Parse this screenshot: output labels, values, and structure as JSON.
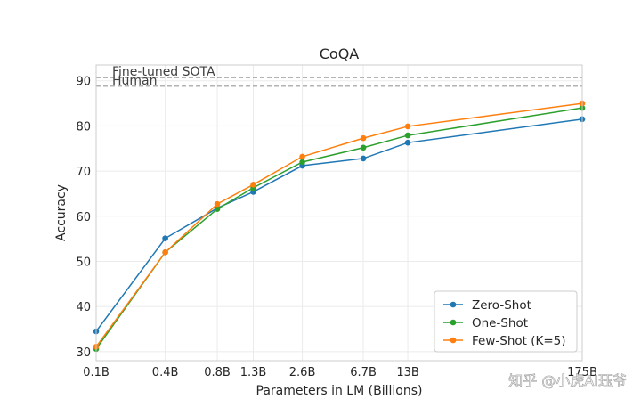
{
  "chart_data": {
    "type": "line",
    "title": "CoQA",
    "xlabel": "Parameters in LM (Billions)",
    "ylabel": "Accuracy",
    "categories": [
      "0.1B",
      "0.4B",
      "0.8B",
      "1.3B",
      "2.6B",
      "6.7B",
      "13B",
      "175B"
    ],
    "x": [
      0.125,
      0.35,
      0.76,
      1.3,
      2.7,
      6.7,
      13,
      175
    ],
    "xlim": [
      0.125,
      175
    ],
    "ylim": [
      28,
      93.5
    ],
    "yticks": [
      30,
      40,
      50,
      60,
      70,
      80,
      90
    ],
    "grid": true,
    "legend_position": "bottom-right",
    "reference_lines": [
      {
        "label": "Fine-tuned SOTA",
        "value": 90.7
      },
      {
        "label": "Human",
        "value": 88.8
      }
    ],
    "series": [
      {
        "name": "Zero-Shot",
        "color": "#1f77b4",
        "values": [
          34.5,
          55.1,
          61.8,
          65.4,
          71.2,
          72.8,
          76.3,
          81.5
        ]
      },
      {
        "name": "One-Shot",
        "color": "#2ca02c",
        "values": [
          30.6,
          52.0,
          61.6,
          66.3,
          72.0,
          75.2,
          77.9,
          84.0
        ]
      },
      {
        "name": "Few-Shot (K=5)",
        "color": "#ff7f0e",
        "values": [
          31.1,
          52.0,
          62.7,
          67.0,
          73.2,
          77.3,
          79.9,
          85.0
        ]
      }
    ]
  },
  "watermark": "知乎 @小虎AI珏爷"
}
